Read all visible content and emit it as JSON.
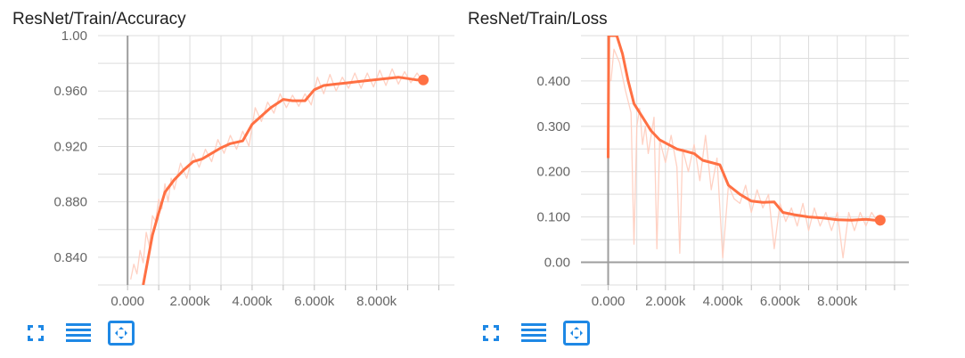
{
  "colors": {
    "accent": "#ff7043",
    "raw": "#ffccbc",
    "icon": "#1e88e5",
    "grid": "#dddddd",
    "axis": "#9e9e9e"
  },
  "toolbar_icons": [
    "fullscreen-icon",
    "data-table-icon",
    "fit-domain-icon"
  ],
  "chart_data": [
    {
      "type": "line",
      "title": "ResNet/Train/Accuracy",
      "xlabel": "",
      "ylabel": "",
      "xlim": [
        -950,
        10500
      ],
      "ylim": [
        0.82,
        1.0
      ],
      "x_ticks": [
        0,
        2000,
        4000,
        6000,
        8000
      ],
      "x_tick_labels": [
        "0.000",
        "2.000k",
        "4.000k",
        "6.000k",
        "8.000k"
      ],
      "y_ticks": [
        0.84,
        0.88,
        0.92,
        0.96,
        1.0
      ],
      "y_tick_labels": [
        "0.840",
        "0.880",
        "0.920",
        "0.960",
        "1.00"
      ],
      "grid": true,
      "series": [
        {
          "style": "smoothed",
          "x": [
            500,
            650,
            800,
            1000,
            1200,
            1500,
            1800,
            2100,
            2400,
            2700,
            3000,
            3300,
            3700,
            4000,
            4300,
            4600,
            5000,
            5300,
            5700,
            6000,
            6300,
            6700,
            7100,
            7500,
            7900,
            8300,
            8700,
            9000,
            9300,
            9500
          ],
          "y": [
            0.82,
            0.838,
            0.856,
            0.872,
            0.887,
            0.896,
            0.903,
            0.909,
            0.911,
            0.915,
            0.919,
            0.922,
            0.924,
            0.936,
            0.942,
            0.948,
            0.954,
            0.953,
            0.953,
            0.961,
            0.964,
            0.965,
            0.966,
            0.967,
            0.968,
            0.969,
            0.97,
            0.969,
            0.968,
            0.968
          ]
        },
        {
          "style": "raw",
          "x": [
            100,
            200,
            300,
            400,
            500,
            600,
            700,
            800,
            900,
            1000,
            1100,
            1200,
            1300,
            1400,
            1500,
            1700,
            1900,
            2100,
            2300,
            2500,
            2700,
            2900,
            3100,
            3300,
            3500,
            3700,
            3900,
            4100,
            4300,
            4500,
            4700,
            4900,
            5100,
            5300,
            5500,
            5700,
            5900,
            6100,
            6300,
            6500,
            6700,
            6900,
            7100,
            7300,
            7500,
            7700,
            7900,
            8100,
            8300,
            8500,
            8700,
            8900,
            9100,
            9300,
            9500
          ],
          "y": [
            0.824,
            0.835,
            0.828,
            0.845,
            0.836,
            0.858,
            0.848,
            0.87,
            0.866,
            0.882,
            0.875,
            0.893,
            0.88,
            0.897,
            0.889,
            0.908,
            0.897,
            0.915,
            0.905,
            0.918,
            0.909,
            0.925,
            0.915,
            0.928,
            0.918,
            0.931,
            0.92,
            0.948,
            0.938,
            0.952,
            0.944,
            0.958,
            0.948,
            0.957,
            0.949,
            0.958,
            0.95,
            0.97,
            0.958,
            0.972,
            0.96,
            0.97,
            0.962,
            0.973,
            0.962,
            0.973,
            0.963,
            0.975,
            0.964,
            0.976,
            0.965,
            0.974,
            0.966,
            0.973,
            0.966
          ]
        }
      ],
      "last_point": {
        "x": 9500,
        "y": 0.968
      }
    },
    {
      "type": "line",
      "title": "ResNet/Train/Loss",
      "xlabel": "",
      "ylabel": "",
      "xlim": [
        -950,
        10500
      ],
      "ylim": [
        -0.05,
        0.5
      ],
      "x_ticks": [
        0,
        2000,
        4000,
        6000,
        8000
      ],
      "x_tick_labels": [
        "0.000",
        "2.000k",
        "4.000k",
        "6.000k",
        "8.000k"
      ],
      "y_ticks": [
        0.0,
        0.1,
        0.2,
        0.3,
        0.4
      ],
      "y_tick_labels": [
        "0.00",
        "0.100",
        "0.200",
        "0.300",
        "0.400"
      ],
      "grid": true,
      "series": [
        {
          "style": "smoothed",
          "x": [
            0,
            20,
            300,
            500,
            700,
            900,
            1200,
            1500,
            1800,
            2100,
            2400,
            2700,
            3000,
            3300,
            3600,
            3900,
            4200,
            4600,
            5000,
            5400,
            5800,
            6100,
            6500,
            7000,
            7500,
            8000,
            8500,
            9000,
            9300,
            9500
          ],
          "y": [
            0.23,
            0.5,
            0.5,
            0.46,
            0.4,
            0.35,
            0.32,
            0.29,
            0.27,
            0.26,
            0.25,
            0.245,
            0.24,
            0.225,
            0.22,
            0.215,
            0.17,
            0.15,
            0.135,
            0.132,
            0.133,
            0.11,
            0.105,
            0.1,
            0.098,
            0.094,
            0.093,
            0.095,
            0.093,
            0.093
          ]
        },
        {
          "style": "raw",
          "x": [
            100,
            200,
            400,
            600,
            800,
            900,
            1000,
            1100,
            1200,
            1300,
            1400,
            1600,
            1700,
            1800,
            2000,
            2200,
            2400,
            2500,
            2600,
            2800,
            3000,
            3200,
            3400,
            3600,
            3800,
            4000,
            4200,
            4400,
            4600,
            4800,
            5000,
            5200,
            5400,
            5600,
            5800,
            6000,
            6200,
            6400,
            6600,
            6800,
            7000,
            7200,
            7400,
            7600,
            7800,
            8000,
            8200,
            8400,
            8600,
            8800,
            9000,
            9200,
            9500
          ],
          "y": [
            0.4,
            0.47,
            0.44,
            0.38,
            0.33,
            0.04,
            0.3,
            0.34,
            0.26,
            0.3,
            0.24,
            0.32,
            0.03,
            0.27,
            0.22,
            0.28,
            0.21,
            0.02,
            0.25,
            0.2,
            0.26,
            0.18,
            0.28,
            0.16,
            0.23,
            0.01,
            0.17,
            0.14,
            0.13,
            0.17,
            0.11,
            0.16,
            0.12,
            0.15,
            0.03,
            0.13,
            0.09,
            0.12,
            0.08,
            0.13,
            0.07,
            0.12,
            0.08,
            0.11,
            0.07,
            0.11,
            0.01,
            0.11,
            0.07,
            0.11,
            0.08,
            0.11,
            0.08
          ]
        }
      ],
      "last_point": {
        "x": 9500,
        "y": 0.093
      }
    }
  ]
}
